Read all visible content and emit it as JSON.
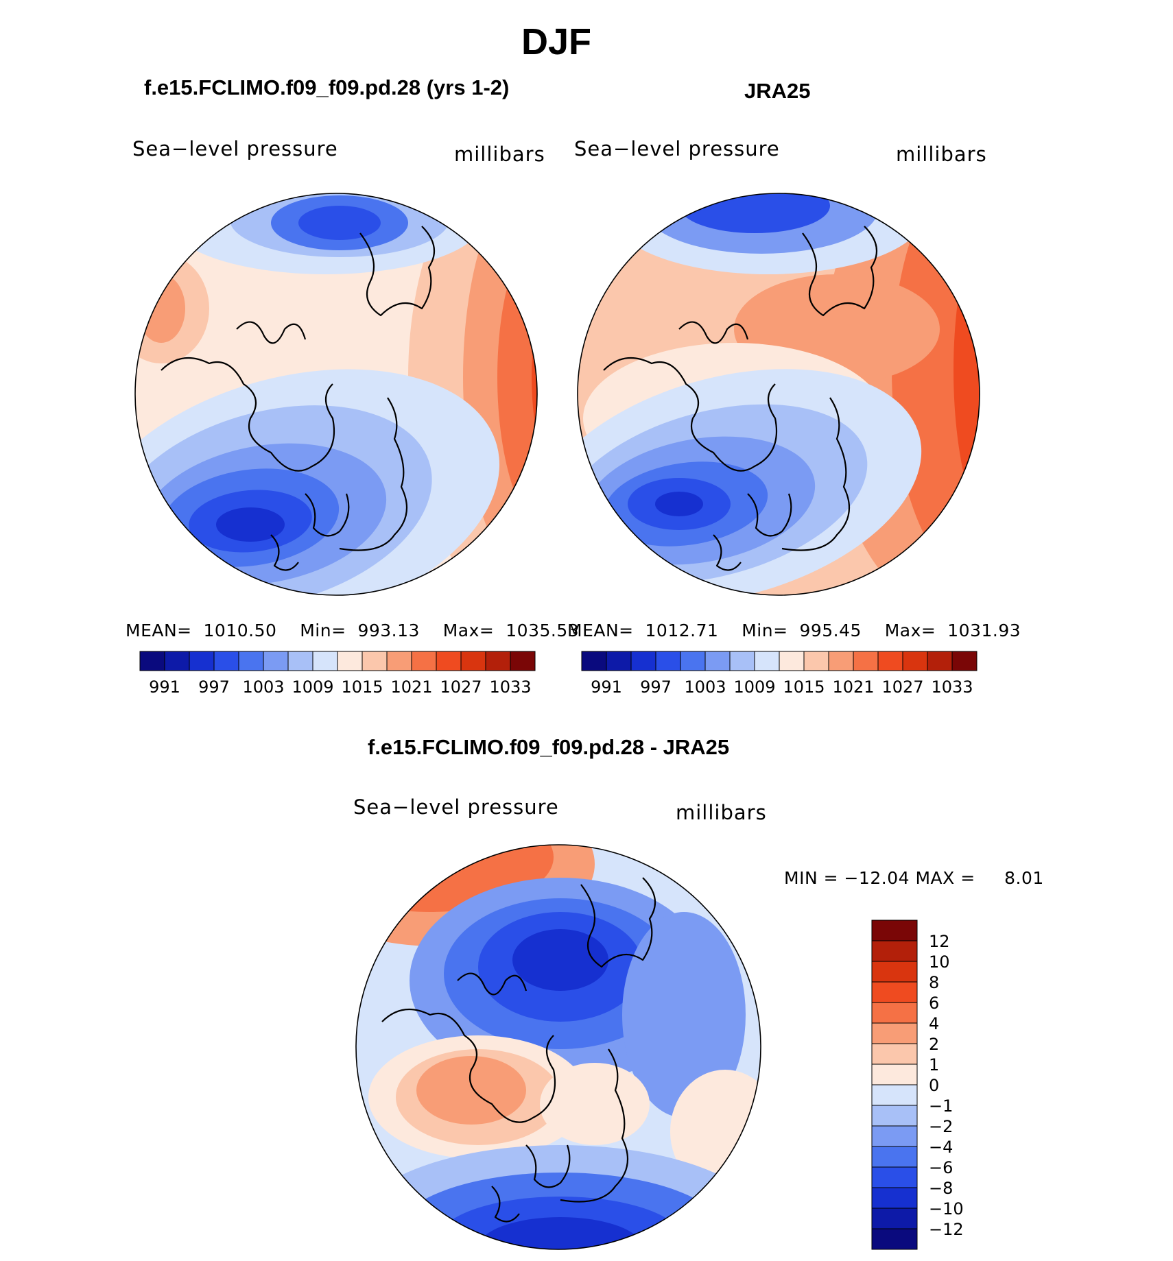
{
  "page_title": "DJF",
  "panels": [
    {
      "title": "f.e15.FCLIMO.f09_f09.pd.28 (yrs 1-2)",
      "variable": "Sea−level pressure",
      "units": "millibars",
      "stats": {
        "mean_label": "MEAN=",
        "mean": "1010.50",
        "min_label": "Min=",
        "min": "993.13",
        "max_label": "Max=",
        "max": "1035.53"
      }
    },
    {
      "title": "JRA25",
      "variable": "Sea−level pressure",
      "units": "millibars",
      "stats": {
        "mean_label": "MEAN=",
        "mean": "1012.71",
        "min_label": "Min=",
        "min": "995.45",
        "max_label": "Max=",
        "max": "1031.93"
      }
    }
  ],
  "diff_panel": {
    "title": "f.e15.FCLIMO.f09_f09.pd.28 - JRA25",
    "variable": "Sea−level pressure",
    "units": "millibars",
    "minmax_text": "MIN = −12.04 MAX =",
    "max_value": "8.01"
  },
  "colorbar_abs": {
    "tick_labels": [
      "991",
      "997",
      "1003",
      "1009",
      "1015",
      "1021",
      "1027",
      "1033"
    ],
    "colors": [
      "#0a0a7e",
      "#0d1aa8",
      "#1630d0",
      "#2a4fe8",
      "#4a74ef",
      "#7b9bf3",
      "#a8c0f7",
      "#d6e4fb",
      "#fde9dd",
      "#fbc7ac",
      "#f89d76",
      "#f57145",
      "#ef4b20",
      "#d9350f",
      "#b3200a",
      "#7a0606"
    ]
  },
  "colorbar_diff": {
    "tick_labels": [
      "12",
      "10",
      "8",
      "6",
      "4",
      "2",
      "1",
      "0",
      "−1",
      "−2",
      "−4",
      "−6",
      "−8",
      "−10",
      "−12"
    ],
    "colors": [
      "#7a0606",
      "#b3200a",
      "#d9350f",
      "#ef4b20",
      "#f57145",
      "#f89d76",
      "#fbc7ac",
      "#fde9dd",
      "#d6e4fb",
      "#a8c0f7",
      "#7b9bf3",
      "#4a74ef",
      "#2a4fe8",
      "#1630d0",
      "#0d1aa8",
      "#0a0a7e"
    ]
  }
}
